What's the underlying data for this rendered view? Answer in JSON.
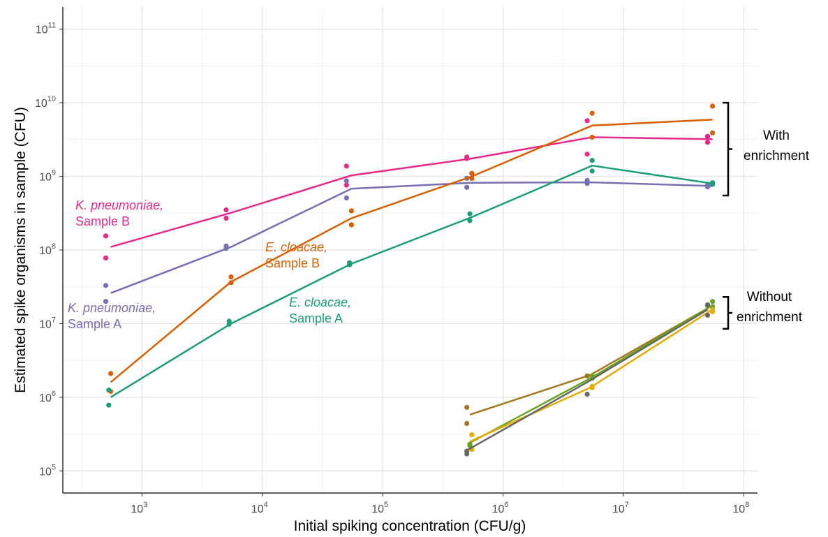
{
  "chart_data": {
    "type": "line",
    "xscale": "log",
    "yscale": "log",
    "xlim": [
      220,
      130000000
    ],
    "ylim": [
      50000,
      200000000000
    ],
    "xlabel": "Initial spiking concentration (CFU/g)",
    "ylabel": "Estimated spike organisms in sample (CFU)",
    "grid": true,
    "x_ticks": [
      {
        "value": 1000,
        "base": "10",
        "exp": "3"
      },
      {
        "value": 10000,
        "base": "10",
        "exp": "4"
      },
      {
        "value": 100000,
        "base": "10",
        "exp": "5"
      },
      {
        "value": 1000000,
        "base": "10",
        "exp": "6"
      },
      {
        "value": 10000000,
        "base": "10",
        "exp": "7"
      },
      {
        "value": 100000000,
        "base": "10",
        "exp": "8"
      }
    ],
    "y_ticks": [
      {
        "value": 100000,
        "base": "10",
        "exp": "5"
      },
      {
        "value": 1000000,
        "base": "10",
        "exp": "6"
      },
      {
        "value": 10000000,
        "base": "10",
        "exp": "7"
      },
      {
        "value": 100000000,
        "base": "10",
        "exp": "8"
      },
      {
        "value": 1000000000,
        "base": "10",
        "exp": "9"
      },
      {
        "value": 10000000000,
        "base": "10",
        "exp": "10"
      },
      {
        "value": 100000000000,
        "base": "10",
        "exp": "11"
      }
    ],
    "series": [
      {
        "color": "#e7298a",
        "line": [
          [
            550,
            110000000
          ],
          [
            5500,
            320000000
          ],
          [
            55000,
            1030000000
          ],
          [
            550000,
            1750000000
          ],
          [
            5500000,
            3400000000
          ],
          [
            55000000,
            3200000000
          ]
        ],
        "points": [
          [
            500,
            155000000
          ],
          [
            500,
            78000000
          ],
          [
            5000,
            350000000
          ],
          [
            5000,
            270000000
          ],
          [
            50000,
            1380000000
          ],
          [
            50000,
            760000000
          ],
          [
            500000,
            1830000000
          ],
          [
            500000,
            1750000000
          ],
          [
            5000000,
            5700000000
          ],
          [
            5000000,
            2000000000
          ],
          [
            50000000,
            3500000000
          ],
          [
            50000000,
            2900000000
          ]
        ]
      },
      {
        "color": "#7570b3",
        "line": [
          [
            550,
            26000000
          ],
          [
            5500,
            110000000
          ],
          [
            55000,
            680000000
          ],
          [
            550000,
            820000000
          ],
          [
            5500000,
            830000000
          ],
          [
            55000000,
            740000000
          ]
        ],
        "points": [
          [
            500,
            33000000
          ],
          [
            500,
            20000000
          ],
          [
            5000,
            113000000
          ],
          [
            5000,
            105000000
          ],
          [
            50000,
            870000000
          ],
          [
            50000,
            510000000
          ],
          [
            500000,
            940000000
          ],
          [
            500000,
            710000000
          ],
          [
            5000000,
            880000000
          ],
          [
            5000000,
            800000000
          ],
          [
            50000000,
            760000000
          ],
          [
            50000000,
            720000000
          ]
        ]
      },
      {
        "color": "#d95f02",
        "line": [
          [
            550,
            1600000
          ],
          [
            5500,
            37000000
          ],
          [
            55000,
            270000000
          ],
          [
            550000,
            1000000000
          ],
          [
            5500000,
            4900000000
          ],
          [
            55000000,
            5900000000
          ]
        ],
        "points": [
          [
            550,
            2100000
          ],
          [
            550,
            1200000
          ],
          [
            5500,
            43000000
          ],
          [
            5500,
            36000000
          ],
          [
            55000,
            340000000
          ],
          [
            55000,
            220000000
          ],
          [
            550000,
            1100000000
          ],
          [
            550000,
            940000000
          ],
          [
            5500000,
            7200000000
          ],
          [
            5500000,
            3400000000
          ],
          [
            55000000,
            9000000000
          ],
          [
            55000000,
            3900000000
          ]
        ]
      },
      {
        "color": "#1b9e77",
        "line": [
          [
            550,
            1000000
          ],
          [
            5500,
            10000000
          ],
          [
            55000,
            65000000
          ],
          [
            550000,
            280000000
          ],
          [
            5500000,
            1400000000
          ],
          [
            55000000,
            800000000
          ]
        ],
        "points": [
          [
            530,
            1250000
          ],
          [
            530,
            780000
          ],
          [
            5300,
            10800000
          ],
          [
            5300,
            9800000
          ],
          [
            53000,
            67000000
          ],
          [
            53000,
            63000000
          ],
          [
            530000,
            310000000
          ],
          [
            530000,
            250000000
          ],
          [
            5500000,
            1650000000
          ],
          [
            5500000,
            1180000000
          ],
          [
            55000000,
            820000000
          ],
          [
            55000000,
            780000000
          ]
        ]
      },
      {
        "color": "#a6761d",
        "line": [
          [
            530000,
            580000
          ],
          [
            5300000,
            2000000
          ],
          [
            53000000,
            17000000
          ]
        ],
        "points": [
          [
            500000,
            730000
          ],
          [
            500000,
            440000
          ],
          [
            5000000,
            1950000
          ],
          [
            50000000,
            17500000
          ]
        ]
      },
      {
        "color": "#66a61e",
        "line": [
          [
            530000,
            240000
          ],
          [
            5300000,
            1800000
          ],
          [
            53000000,
            17000000
          ]
        ],
        "points": [
          [
            530000,
            230000
          ],
          [
            530000,
            220000
          ],
          [
            5500000,
            1950000
          ],
          [
            5500000,
            1800000
          ],
          [
            55000000,
            20000000
          ],
          [
            55000000,
            17000000
          ]
        ]
      },
      {
        "color": "#e6ab02",
        "line": [
          [
            530000,
            250000
          ],
          [
            5300000,
            1350000
          ],
          [
            53000000,
            15000000
          ]
        ],
        "points": [
          [
            550000,
            310000
          ],
          [
            550000,
            195000
          ],
          [
            5500000,
            1400000
          ],
          [
            5500000,
            1350000
          ],
          [
            55000000,
            15500000
          ],
          [
            55000000,
            14500000
          ]
        ]
      },
      {
        "color": "#666666",
        "line": [
          [
            500000,
            190000
          ],
          [
            5000000,
            1600000
          ],
          [
            50000000,
            15500000
          ]
        ],
        "points": [
          [
            500000,
            185000
          ],
          [
            500000,
            170000
          ],
          [
            5000000,
            1100000
          ],
          [
            50000000,
            18000000
          ],
          [
            50000000,
            13000000
          ]
        ]
      }
    ],
    "annotations": [
      {
        "lines": [
          {
            "text": "K. pneumoniae,",
            "italic": true
          },
          {
            "text": "Sample B",
            "italic": false
          }
        ],
        "color": "#e7298a"
      },
      {
        "lines": [
          {
            "text": "E. cloacae,",
            "italic": true
          },
          {
            "text": "Sample B",
            "italic": false
          }
        ],
        "color": "#d95f02"
      },
      {
        "lines": [
          {
            "text": "K. pneumoniae,",
            "italic": true
          },
          {
            "text": "Sample A",
            "italic": false
          }
        ],
        "color": "#7570b3"
      },
      {
        "lines": [
          {
            "text": "E. cloacae,",
            "italic": true
          },
          {
            "text": "Sample A",
            "italic": false
          }
        ],
        "color": "#1b9e77"
      }
    ],
    "brackets": [
      {
        "lines": [
          "With",
          "enrichment"
        ],
        "y_top": 10000000000,
        "y_bottom": 550000000
      },
      {
        "lines": [
          "Without",
          "enrichment"
        ],
        "y_top": 23000000,
        "y_bottom": 8500000
      }
    ]
  }
}
